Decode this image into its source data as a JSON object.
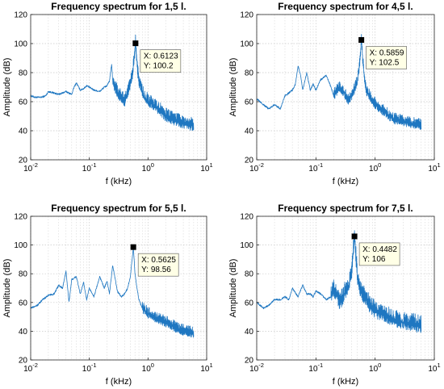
{
  "chart_data": [
    {
      "type": "line",
      "title": "Frequency spectrum for 1,5 l.",
      "xlabel": "f (kHz)",
      "ylabel": "Amplitude (dB)",
      "xscale": "log",
      "xlim": [
        0.01,
        10
      ],
      "ylim": [
        20,
        120
      ],
      "xticks": [
        0.01,
        0.1,
        1,
        10
      ],
      "xtick_labels": [
        [
          "10",
          "-2"
        ],
        [
          "10",
          "-1"
        ],
        [
          "10",
          "0"
        ],
        [
          "10",
          "1"
        ]
      ],
      "yticks": [
        20,
        40,
        60,
        80,
        100,
        120
      ],
      "grid": true,
      "line_color": "#1f77c1",
      "datatip": {
        "x": 0.6123,
        "y": 100.2,
        "x_label": "X: 0.6123",
        "y_label": "Y: 100.2"
      },
      "series": [
        {
          "x": [
            0.01,
            0.012,
            0.015,
            0.018,
            0.02,
            0.025,
            0.03,
            0.035,
            0.04,
            0.05,
            0.055,
            0.06,
            0.07,
            0.08,
            0.09,
            0.1,
            0.12,
            0.15,
            0.18,
            0.2,
            0.22,
            0.24,
            0.25,
            0.27,
            0.3,
            0.35,
            0.4,
            0.45,
            0.5,
            0.55,
            0.58,
            0.6,
            0.6123,
            0.63,
            0.66,
            0.7,
            0.8,
            0.9,
            1,
            1.2,
            1.5,
            2,
            2.5,
            3,
            4,
            5,
            6
          ],
          "y": [
            64,
            63,
            63,
            64,
            67,
            66,
            65,
            66,
            67,
            65,
            70,
            73,
            68,
            69,
            71,
            70,
            68,
            67,
            70,
            71,
            74,
            86,
            74,
            70,
            66,
            63,
            60,
            66,
            72,
            80,
            90,
            96,
            100.2,
            94,
            82,
            74,
            66,
            62,
            60,
            58,
            55,
            50,
            48,
            47,
            45,
            44,
            43
          ],
          "noise_from": 0.25,
          "noise_amplitude": 6
        }
      ]
    },
    {
      "type": "line",
      "title": "Frequency spectrum for 4,5 l.",
      "xlabel": "f (kHz)",
      "ylabel": "Amplitude (dB)",
      "xscale": "log",
      "xlim": [
        0.01,
        10
      ],
      "ylim": [
        20,
        120
      ],
      "xticks": [
        0.01,
        0.1,
        1,
        10
      ],
      "xtick_labels": [
        [
          "10",
          "-2"
        ],
        [
          "10",
          "-1"
        ],
        [
          "10",
          "0"
        ],
        [
          "10",
          "1"
        ]
      ],
      "yticks": [
        20,
        40,
        60,
        80,
        100,
        120
      ],
      "grid": true,
      "line_color": "#1f77c1",
      "datatip": {
        "x": 0.5859,
        "y": 102.5,
        "x_label": "X: 0.5859",
        "y_label": "Y: 102.5"
      },
      "series": [
        {
          "x": [
            0.01,
            0.013,
            0.016,
            0.02,
            0.025,
            0.03,
            0.035,
            0.04,
            0.045,
            0.05,
            0.055,
            0.06,
            0.07,
            0.08,
            0.09,
            0.1,
            0.12,
            0.15,
            0.18,
            0.2,
            0.25,
            0.3,
            0.35,
            0.4,
            0.45,
            0.5,
            0.55,
            0.5859,
            0.62,
            0.66,
            0.7,
            0.8,
            0.9,
            1,
            1.2,
            1.5,
            2,
            3,
            4,
            5,
            6
          ],
          "y": [
            62,
            58,
            55,
            58,
            55,
            64,
            66,
            68,
            72,
            85,
            78,
            68,
            80,
            68,
            72,
            68,
            75,
            78,
            70,
            64,
            70,
            66,
            60,
            64,
            68,
            74,
            86,
            102.5,
            88,
            76,
            68,
            64,
            60,
            58,
            55,
            52,
            48,
            46,
            45,
            44,
            43
          ],
          "noise_from": 0.2,
          "noise_amplitude": 5
        }
      ]
    },
    {
      "type": "line",
      "title": "Frequency spectrum for 5,5 l.",
      "xlabel": "f (kHz)",
      "ylabel": "Amplitude (dB)",
      "xscale": "log",
      "xlim": [
        0.01,
        10
      ],
      "ylim": [
        20,
        120
      ],
      "xticks": [
        0.01,
        0.1,
        1,
        10
      ],
      "xtick_labels": [
        [
          "10",
          "-2"
        ],
        [
          "10",
          "-1"
        ],
        [
          "10",
          "0"
        ],
        [
          "10",
          "1"
        ]
      ],
      "yticks": [
        20,
        40,
        60,
        80,
        100,
        120
      ],
      "grid": true,
      "line_color": "#1f77c1",
      "datatip": {
        "x": 0.5625,
        "y": 98.56,
        "x_label": "X: 0.5625",
        "y_label": "Y: 98.56"
      },
      "series": [
        {
          "x": [
            0.01,
            0.013,
            0.016,
            0.02,
            0.025,
            0.03,
            0.035,
            0.04,
            0.045,
            0.05,
            0.06,
            0.07,
            0.08,
            0.09,
            0.1,
            0.12,
            0.15,
            0.18,
            0.2,
            0.22,
            0.25,
            0.3,
            0.35,
            0.4,
            0.45,
            0.5,
            0.5625,
            0.6,
            0.65,
            0.7,
            0.8,
            0.9,
            1,
            1.2,
            1.5,
            2,
            2.5,
            3,
            4,
            5,
            6
          ],
          "y": [
            56,
            58,
            62,
            65,
            66,
            72,
            70,
            82,
            60,
            76,
            78,
            66,
            74,
            62,
            70,
            64,
            78,
            70,
            75,
            66,
            86,
            68,
            64,
            66,
            70,
            78,
            98.56,
            80,
            70,
            62,
            56,
            54,
            52,
            50,
            48,
            46,
            44,
            42,
            40,
            39,
            38
          ],
          "noise_from": 0.8,
          "noise_amplitude": 5
        }
      ]
    },
    {
      "type": "line",
      "title": "Frequency spectrum for 7,5 l.",
      "xlabel": "f (kHz)",
      "ylabel": "Amplitude (dB)",
      "xscale": "log",
      "xlim": [
        0.01,
        10
      ],
      "ylim": [
        20,
        120
      ],
      "xticks": [
        0.01,
        0.1,
        1,
        10
      ],
      "xtick_labels": [
        [
          "10",
          "-2"
        ],
        [
          "10",
          "-1"
        ],
        [
          "10",
          "0"
        ],
        [
          "10",
          "1"
        ]
      ],
      "yticks": [
        20,
        40,
        60,
        80,
        100,
        120
      ],
      "grid": true,
      "line_color": "#1f77c1",
      "datatip": {
        "x": 0.4482,
        "y": 106,
        "x_label": "X: 0.4482",
        "y_label": "Y: 106"
      },
      "series": [
        {
          "x": [
            0.01,
            0.013,
            0.016,
            0.02,
            0.025,
            0.03,
            0.035,
            0.04,
            0.05,
            0.06,
            0.07,
            0.08,
            0.09,
            0.1,
            0.12,
            0.15,
            0.18,
            0.2,
            0.22,
            0.25,
            0.28,
            0.3,
            0.35,
            0.4,
            0.4482,
            0.5,
            0.55,
            0.6,
            0.7,
            0.8,
            0.9,
            1,
            1.2,
            1.5,
            2,
            3,
            4,
            5,
            6
          ],
          "y": [
            60,
            56,
            58,
            62,
            62,
            64,
            62,
            70,
            64,
            72,
            66,
            66,
            64,
            68,
            66,
            62,
            64,
            68,
            66,
            60,
            62,
            66,
            70,
            80,
            106,
            78,
            70,
            66,
            62,
            58,
            56,
            54,
            52,
            50,
            48,
            46,
            45,
            44,
            43
          ],
          "noise_from": 0.18,
          "noise_amplitude": 8
        }
      ]
    }
  ]
}
